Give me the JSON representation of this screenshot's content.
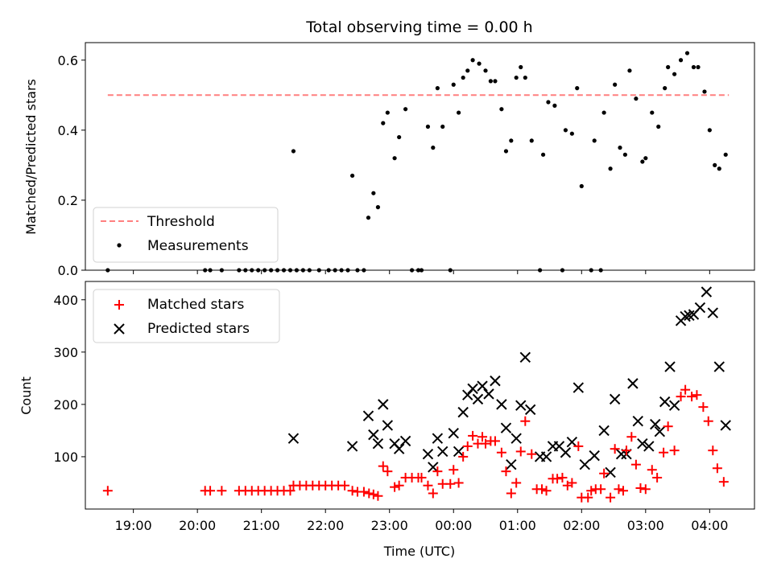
{
  "figure": {
    "title": "Total observing time = 0.00 h"
  },
  "chart_data": [
    {
      "type": "scatter",
      "title": "Total observing time = 0.00 h",
      "ylabel": "Matched/Predicted stars",
      "xlabel": "",
      "ylim": [
        0,
        0.65
      ],
      "xlim_hours": [
        18.25,
        28.7
      ],
      "yticks": [
        "0.0",
        "0.2",
        "0.4",
        "0.6"
      ],
      "ytick_values": [
        0,
        0.2,
        0.4,
        0.6
      ],
      "legend": {
        "placement": "lower-left",
        "entries": [
          "Threshold",
          "Measurements"
        ]
      },
      "threshold": {
        "name": "Threshold",
        "y": 0.5,
        "x_range_hours": [
          18.6,
          28.3
        ],
        "color": "#ff7f7f",
        "style": "dashed"
      },
      "series": [
        {
          "name": "Measurements",
          "color": "#000000",
          "points": [
            [
              18.6,
              0.0
            ],
            [
              20.12,
              0.0
            ],
            [
              20.2,
              0.0
            ],
            [
              20.38,
              0.0
            ],
            [
              20.65,
              0.0
            ],
            [
              20.75,
              0.0
            ],
            [
              20.85,
              0.0
            ],
            [
              20.95,
              0.0
            ],
            [
              21.05,
              0.0
            ],
            [
              21.15,
              0.0
            ],
            [
              21.25,
              0.0
            ],
            [
              21.35,
              0.0
            ],
            [
              21.45,
              0.0
            ],
            [
              21.5,
              0.34
            ],
            [
              21.55,
              0.0
            ],
            [
              21.65,
              0.0
            ],
            [
              21.75,
              0.0
            ],
            [
              21.9,
              0.0
            ],
            [
              22.05,
              0.0
            ],
            [
              22.15,
              0.0
            ],
            [
              22.25,
              0.0
            ],
            [
              22.35,
              0.0
            ],
            [
              22.5,
              0.0
            ],
            [
              22.6,
              0.0
            ],
            [
              22.42,
              0.27
            ],
            [
              22.67,
              0.15
            ],
            [
              22.75,
              0.22
            ],
            [
              22.82,
              0.18
            ],
            [
              22.9,
              0.42
            ],
            [
              22.97,
              0.45
            ],
            [
              23.08,
              0.32
            ],
            [
              23.15,
              0.38
            ],
            [
              23.25,
              0.46
            ],
            [
              23.35,
              0.0
            ],
            [
              23.45,
              0.0
            ],
            [
              23.5,
              0.0
            ],
            [
              23.6,
              0.41
            ],
            [
              23.68,
              0.35
            ],
            [
              23.75,
              0.52
            ],
            [
              23.83,
              0.41
            ],
            [
              23.95,
              0.0
            ],
            [
              24.0,
              0.53
            ],
            [
              24.08,
              0.45
            ],
            [
              24.15,
              0.55
            ],
            [
              24.22,
              0.57
            ],
            [
              24.3,
              0.6
            ],
            [
              24.4,
              0.59
            ],
            [
              24.5,
              0.57
            ],
            [
              24.58,
              0.54
            ],
            [
              24.65,
              0.54
            ],
            [
              24.75,
              0.46
            ],
            [
              24.82,
              0.34
            ],
            [
              24.9,
              0.37
            ],
            [
              24.98,
              0.55
            ],
            [
              25.05,
              0.58
            ],
            [
              25.12,
              0.55
            ],
            [
              25.22,
              0.37
            ],
            [
              25.35,
              0.0
            ],
            [
              25.4,
              0.33
            ],
            [
              25.48,
              0.48
            ],
            [
              25.58,
              0.47
            ],
            [
              25.7,
              0.0
            ],
            [
              25.75,
              0.4
            ],
            [
              25.85,
              0.39
            ],
            [
              25.93,
              0.52
            ],
            [
              26.0,
              0.24
            ],
            [
              26.15,
              0.0
            ],
            [
              26.2,
              0.37
            ],
            [
              26.3,
              0.0
            ],
            [
              26.35,
              0.45
            ],
            [
              26.45,
              0.29
            ],
            [
              26.52,
              0.53
            ],
            [
              26.6,
              0.35
            ],
            [
              26.68,
              0.33
            ],
            [
              26.75,
              0.57
            ],
            [
              26.85,
              0.49
            ],
            [
              26.95,
              0.31
            ],
            [
              27.0,
              0.32
            ],
            [
              27.1,
              0.45
            ],
            [
              27.2,
              0.41
            ],
            [
              27.3,
              0.52
            ],
            [
              27.35,
              0.58
            ],
            [
              27.45,
              0.56
            ],
            [
              27.55,
              0.6
            ],
            [
              27.65,
              0.62
            ],
            [
              27.75,
              0.58
            ],
            [
              27.82,
              0.58
            ],
            [
              27.92,
              0.51
            ],
            [
              28.0,
              0.4
            ],
            [
              28.08,
              0.3
            ],
            [
              28.15,
              0.29
            ],
            [
              28.25,
              0.33
            ]
          ]
        }
      ]
    },
    {
      "type": "scatter",
      "title": "",
      "ylabel": "Count",
      "xlabel": "Time (UTC)",
      "ylim": [
        0,
        435
      ],
      "xlim_hours": [
        18.25,
        28.7
      ],
      "yticks": [
        "100",
        "200",
        "300",
        "400"
      ],
      "ytick_values": [
        100,
        200,
        300,
        400
      ],
      "xticks": [
        "19:00",
        "20:00",
        "21:00",
        "22:00",
        "23:00",
        "00:00",
        "01:00",
        "02:00",
        "03:00",
        "04:00"
      ],
      "xtick_values_hours": [
        19,
        20,
        21,
        22,
        23,
        24,
        25,
        26,
        27,
        28
      ],
      "legend": {
        "placement": "top-left",
        "entries": [
          "Matched stars",
          "Predicted stars"
        ]
      },
      "series": [
        {
          "name": "Matched stars",
          "marker": "plus",
          "color": "#ff0000",
          "points": [
            [
              18.6,
              35
            ],
            [
              20.12,
              35
            ],
            [
              20.2,
              35
            ],
            [
              20.38,
              35
            ],
            [
              20.65,
              35
            ],
            [
              20.75,
              35
            ],
            [
              20.85,
              35
            ],
            [
              20.95,
              35
            ],
            [
              21.05,
              35
            ],
            [
              21.15,
              35
            ],
            [
              21.25,
              35
            ],
            [
              21.35,
              35
            ],
            [
              21.45,
              35
            ],
            [
              21.5,
              45
            ],
            [
              21.6,
              45
            ],
            [
              21.7,
              45
            ],
            [
              21.8,
              45
            ],
            [
              21.9,
              45
            ],
            [
              22.0,
              45
            ],
            [
              22.1,
              45
            ],
            [
              22.2,
              45
            ],
            [
              22.3,
              45
            ],
            [
              22.42,
              35
            ],
            [
              22.5,
              33
            ],
            [
              22.6,
              33
            ],
            [
              22.68,
              30
            ],
            [
              22.75,
              28
            ],
            [
              22.82,
              25
            ],
            [
              22.9,
              82
            ],
            [
              22.97,
              72
            ],
            [
              23.08,
              42
            ],
            [
              23.15,
              45
            ],
            [
              23.25,
              60
            ],
            [
              23.35,
              60
            ],
            [
              23.45,
              60
            ],
            [
              23.5,
              60
            ],
            [
              23.6,
              45
            ],
            [
              23.68,
              30
            ],
            [
              23.75,
              72
            ],
            [
              23.83,
              48
            ],
            [
              23.95,
              48
            ],
            [
              24.0,
              75
            ],
            [
              24.08,
              50
            ],
            [
              24.15,
              100
            ],
            [
              24.22,
              120
            ],
            [
              24.3,
              140
            ],
            [
              24.38,
              125
            ],
            [
              24.45,
              138
            ],
            [
              24.5,
              125
            ],
            [
              24.58,
              130
            ],
            [
              24.65,
              130
            ],
            [
              24.75,
              108
            ],
            [
              24.82,
              72
            ],
            [
              24.9,
              30
            ],
            [
              24.98,
              50
            ],
            [
              25.05,
              110
            ],
            [
              25.12,
              168
            ],
            [
              25.22,
              105
            ],
            [
              25.3,
              38
            ],
            [
              25.38,
              38
            ],
            [
              25.45,
              35
            ],
            [
              25.55,
              58
            ],
            [
              25.62,
              58
            ],
            [
              25.7,
              60
            ],
            [
              25.78,
              45
            ],
            [
              25.85,
              50
            ],
            [
              25.95,
              120
            ],
            [
              26.0,
              22
            ],
            [
              26.1,
              22
            ],
            [
              26.15,
              35
            ],
            [
              26.22,
              38
            ],
            [
              26.3,
              38
            ],
            [
              26.35,
              68
            ],
            [
              26.45,
              22
            ],
            [
              26.52,
              115
            ],
            [
              26.58,
              38
            ],
            [
              26.65,
              35
            ],
            [
              26.7,
              112
            ],
            [
              26.78,
              138
            ],
            [
              26.85,
              85
            ],
            [
              26.92,
              40
            ],
            [
              27.0,
              38
            ],
            [
              27.1,
              75
            ],
            [
              27.18,
              60
            ],
            [
              27.28,
              108
            ],
            [
              27.35,
              158
            ],
            [
              27.45,
              112
            ],
            [
              27.55,
              215
            ],
            [
              27.62,
              228
            ],
            [
              27.72,
              215
            ],
            [
              27.8,
              218
            ],
            [
              27.9,
              195
            ],
            [
              27.98,
              168
            ],
            [
              28.05,
              112
            ],
            [
              28.12,
              78
            ],
            [
              28.22,
              52
            ]
          ]
        },
        {
          "name": "Predicted stars",
          "marker": "x",
          "color": "#000000",
          "points": [
            [
              21.5,
              135
            ],
            [
              22.42,
              120
            ],
            [
              22.67,
              178
            ],
            [
              22.75,
              142
            ],
            [
              22.82,
              125
            ],
            [
              22.9,
              200
            ],
            [
              22.97,
              160
            ],
            [
              23.08,
              125
            ],
            [
              23.15,
              115
            ],
            [
              23.25,
              130
            ],
            [
              23.6,
              105
            ],
            [
              23.68,
              80
            ],
            [
              23.75,
              135
            ],
            [
              23.83,
              110
            ],
            [
              24.0,
              145
            ],
            [
              24.08,
              110
            ],
            [
              24.15,
              185
            ],
            [
              24.22,
              218
            ],
            [
              24.3,
              230
            ],
            [
              24.38,
              210
            ],
            [
              24.45,
              235
            ],
            [
              24.55,
              220
            ],
            [
              24.65,
              245
            ],
            [
              24.75,
              200
            ],
            [
              24.82,
              155
            ],
            [
              24.9,
              85
            ],
            [
              24.98,
              135
            ],
            [
              25.05,
              198
            ],
            [
              25.12,
              290
            ],
            [
              25.2,
              190
            ],
            [
              25.35,
              100
            ],
            [
              25.45,
              100
            ],
            [
              25.55,
              120
            ],
            [
              25.65,
              120
            ],
            [
              25.75,
              108
            ],
            [
              25.85,
              128
            ],
            [
              25.95,
              232
            ],
            [
              26.05,
              85
            ],
            [
              26.2,
              102
            ],
            [
              26.35,
              150
            ],
            [
              26.45,
              70
            ],
            [
              26.52,
              210
            ],
            [
              26.62,
              105
            ],
            [
              26.7,
              105
            ],
            [
              26.8,
              240
            ],
            [
              26.88,
              168
            ],
            [
              26.95,
              125
            ],
            [
              27.05,
              120
            ],
            [
              27.15,
              162
            ],
            [
              27.22,
              148
            ],
            [
              27.3,
              205
            ],
            [
              27.38,
              272
            ],
            [
              27.45,
              198
            ],
            [
              27.55,
              360
            ],
            [
              27.62,
              368
            ],
            [
              27.68,
              370
            ],
            [
              27.75,
              372
            ],
            [
              27.85,
              385
            ],
            [
              27.95,
              415
            ],
            [
              28.05,
              375
            ],
            [
              28.15,
              272
            ],
            [
              28.25,
              160
            ]
          ]
        }
      ]
    }
  ]
}
